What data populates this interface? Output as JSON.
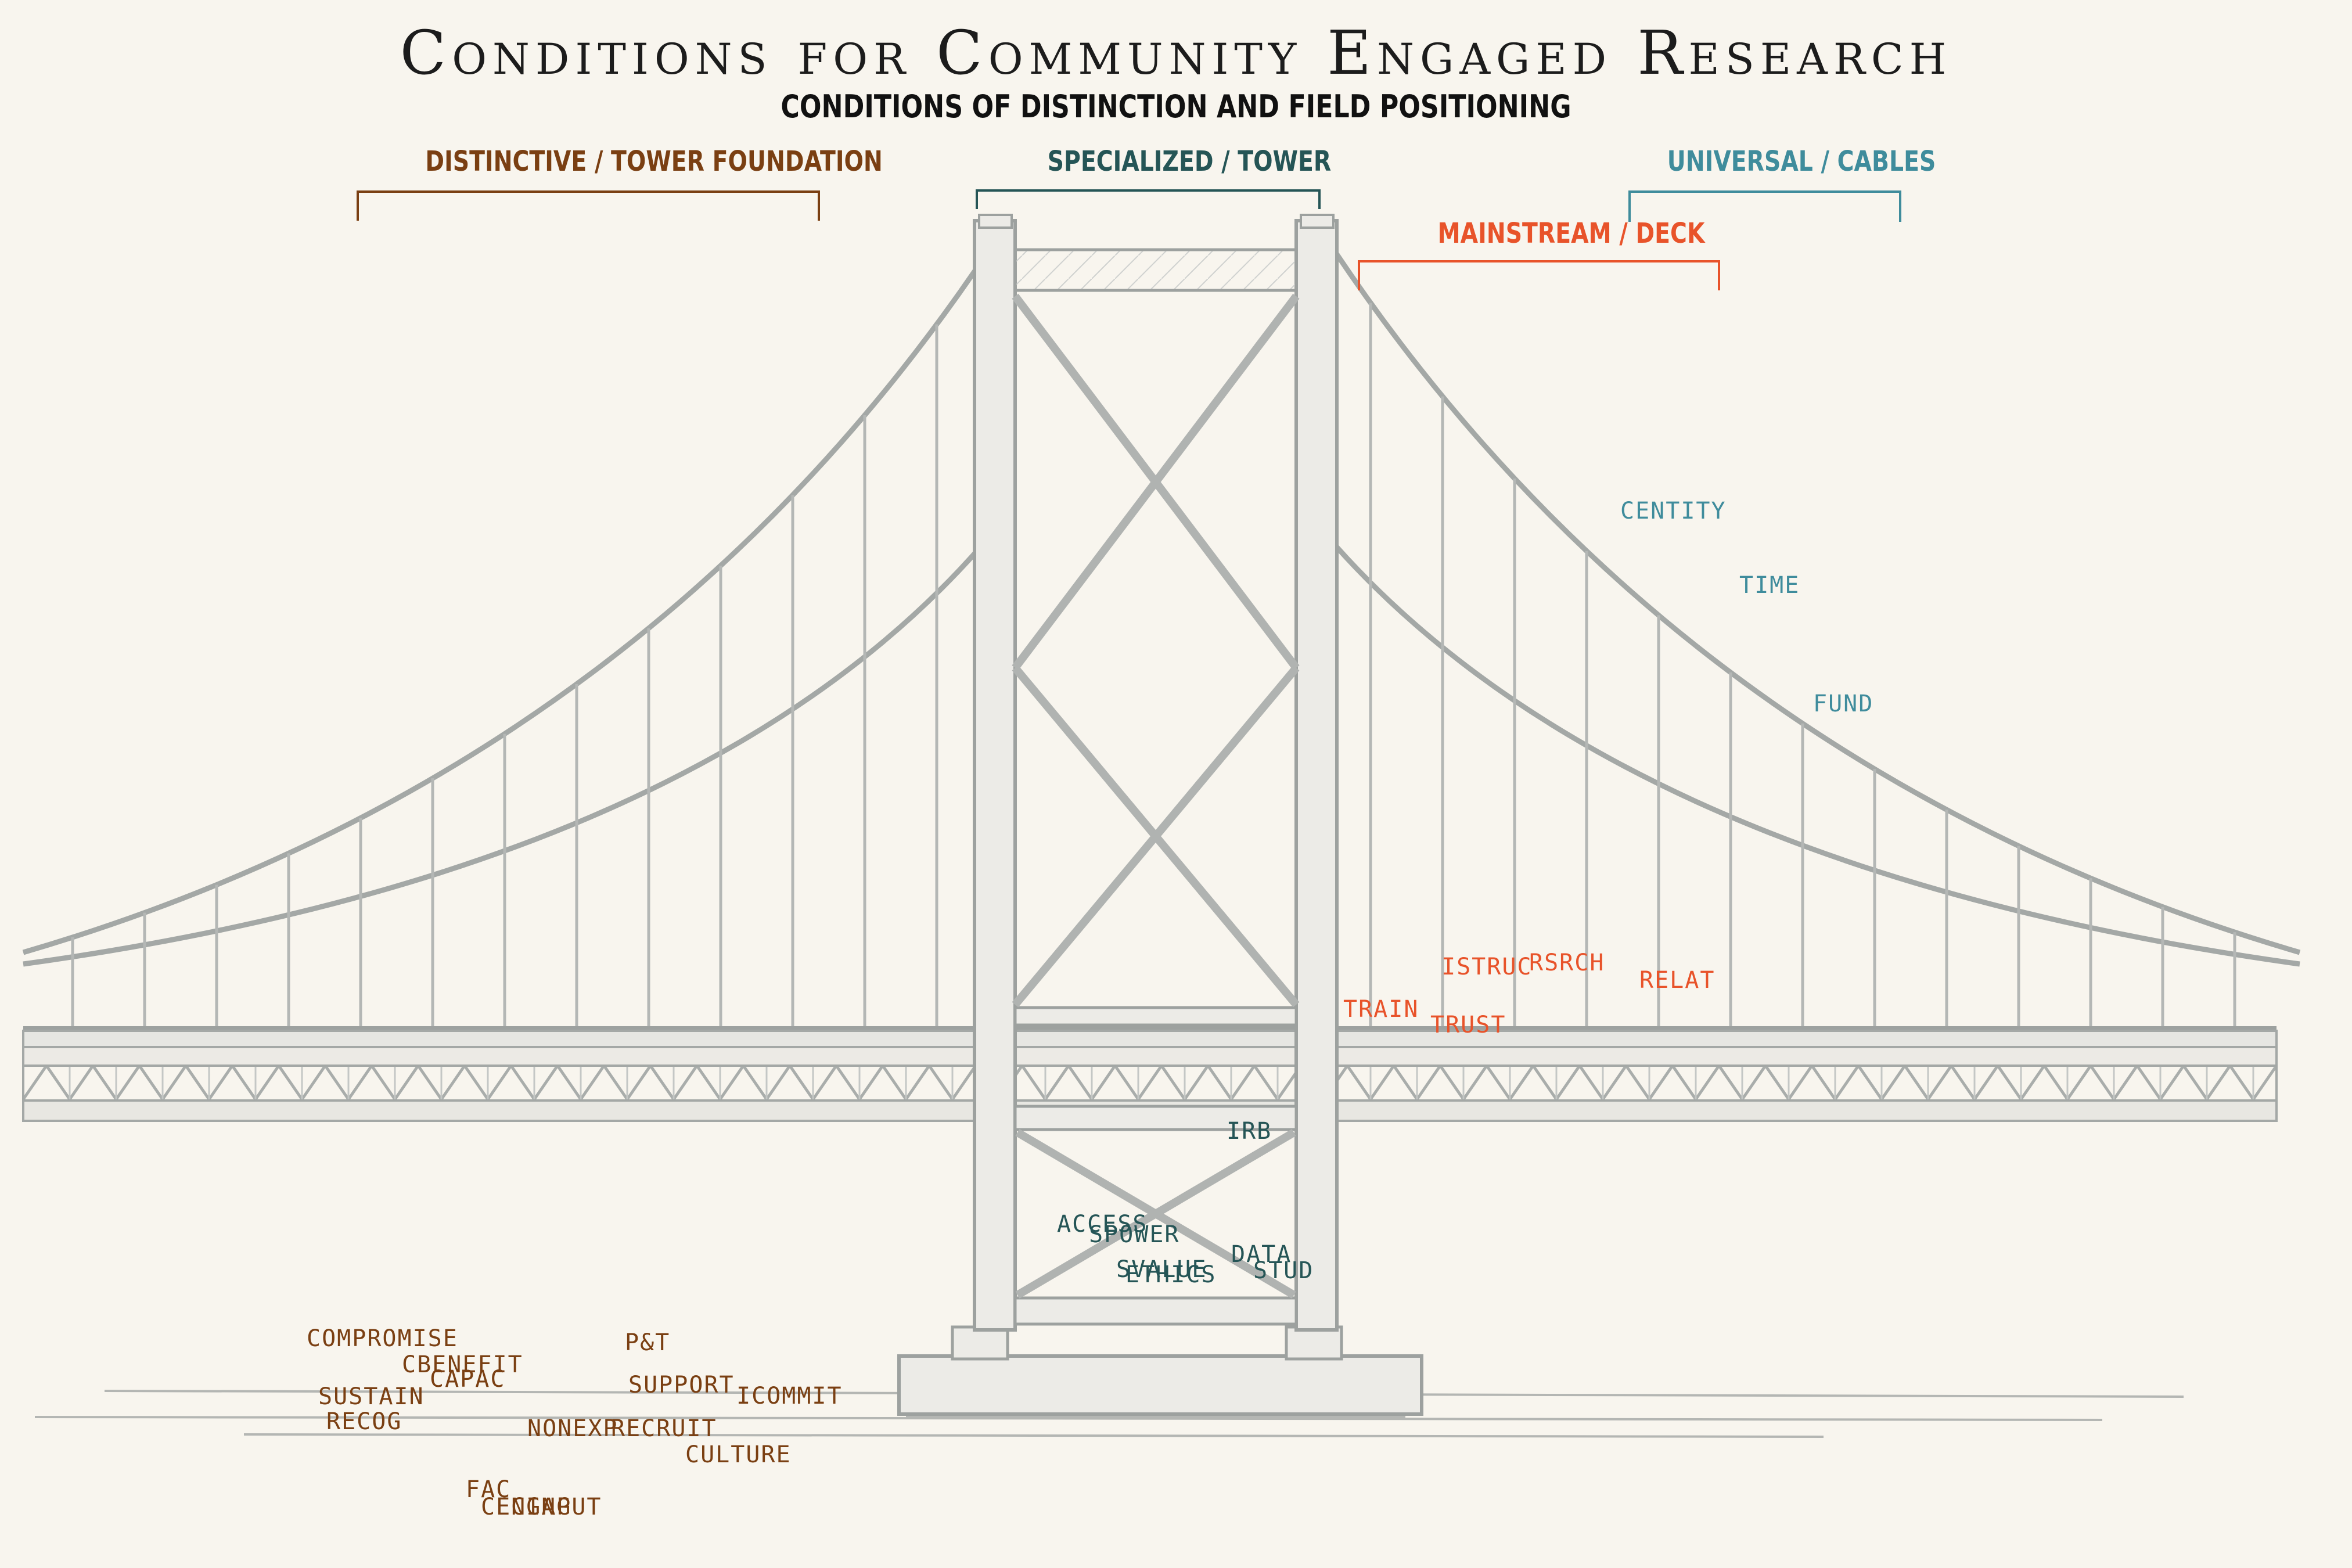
{
  "title": "Conditions for Community Engaged Research",
  "subtitle": "CONDITIONS OF DISTINCTION AND FIELD POSITIONING",
  "groups": {
    "distinctive": "DISTINCTIVE / TOWER FOUNDATION",
    "specialized": "SPECIALIZED / TOWER",
    "universal": "UNIVERSAL / CABLES",
    "mainstream": "MAINSTREAM / DECK"
  },
  "colors": {
    "distinctive": "#7a3f12",
    "specialized": "#255556",
    "universal": "#3f8c9c",
    "mainstream": "#e8532a",
    "sketch": "#a9adab"
  },
  "terms": {
    "universal": [
      "CENTITY",
      "TIME",
      "FUND"
    ],
    "mainstream": [
      "ISTRUC",
      "RSRCH",
      "RELAT",
      "TRAIN",
      "TRUST"
    ],
    "specialized": [
      "IRB",
      "ACCESS",
      "SPOWER",
      "SVALUE",
      "ETHICS",
      "DATA",
      "STUD"
    ],
    "distinctive": [
      "COMPROMISE",
      "CBENEFIT",
      "CAPAC",
      "SUSTAIN",
      "RECOG",
      "P&T",
      "SUPPORT",
      "ICOMMIT",
      "NONEXP",
      "RECRUIT",
      "CULTURE",
      "FAC",
      "CENGAG",
      "CINPUT"
    ]
  }
}
